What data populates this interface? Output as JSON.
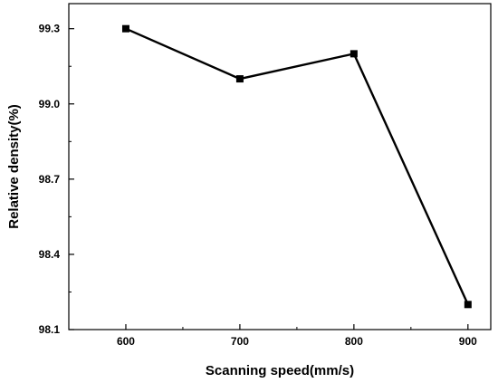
{
  "chart_data": {
    "type": "line",
    "title": "",
    "xlabel": "Scanning speed(mm/s)",
    "ylabel": "Relative density(%)",
    "x": [
      600,
      700,
      800,
      900
    ],
    "xtick_labels": [
      "600",
      "700",
      "800",
      "900"
    ],
    "xlim": [
      550,
      920
    ],
    "ylim": [
      98.1,
      99.4
    ],
    "yticks": [
      98.1,
      98.4,
      98.7,
      99.0,
      99.3
    ],
    "ytick_labels": [
      "98.1",
      "98.4",
      "98.7",
      "99.0",
      "99.3"
    ],
    "series": [
      {
        "values": [
          99.3,
          99.1,
          99.2,
          98.2
        ],
        "marker": "square",
        "color": "#000000"
      }
    ],
    "grid": false,
    "legend": "none"
  }
}
